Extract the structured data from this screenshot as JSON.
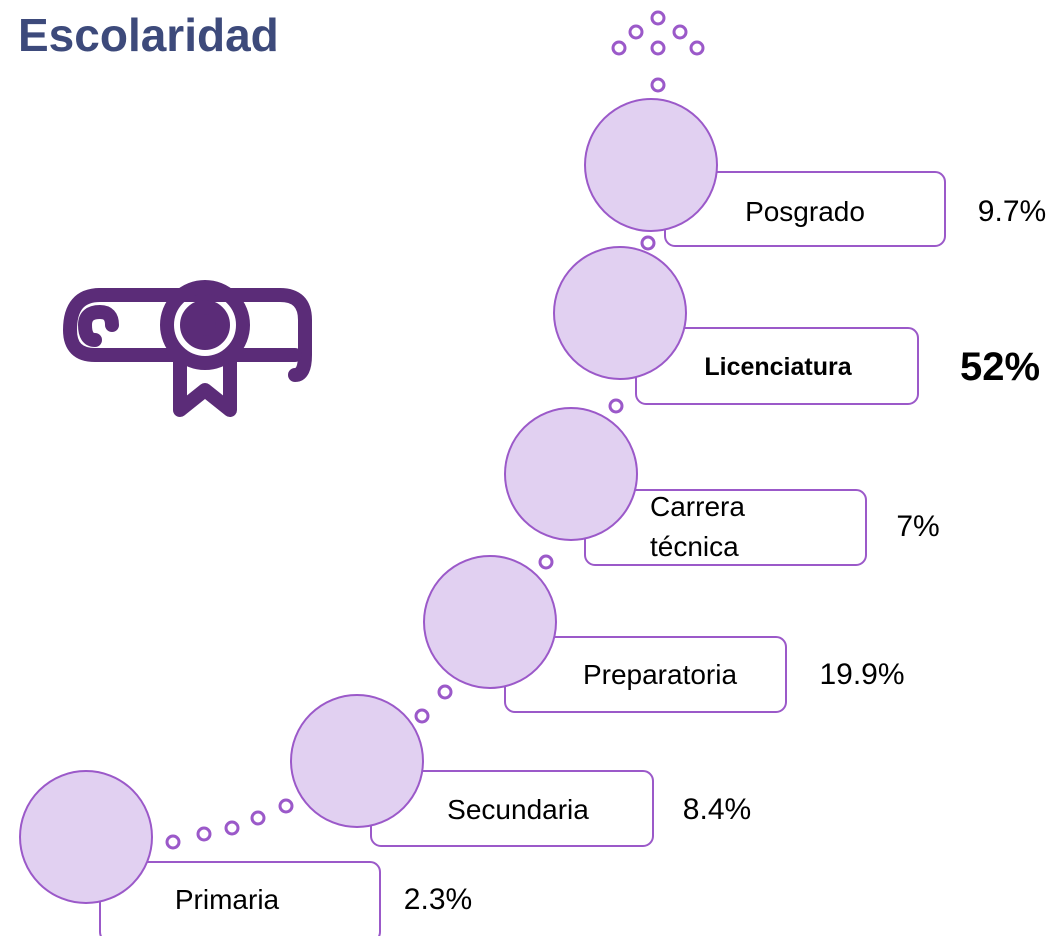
{
  "title": "Escolaridad",
  "levels": [
    {
      "label": "Posgrado",
      "value": "9.7%"
    },
    {
      "label": "Licenciatura",
      "value": "52%"
    },
    {
      "label": "Carrera técnica",
      "value": "7%"
    },
    {
      "label": "Preparatoria",
      "value": "19.9%"
    },
    {
      "label": "Secundaria",
      "value": "8.4%"
    },
    {
      "label": "Primaria",
      "value": "2.3%"
    }
  ]
}
